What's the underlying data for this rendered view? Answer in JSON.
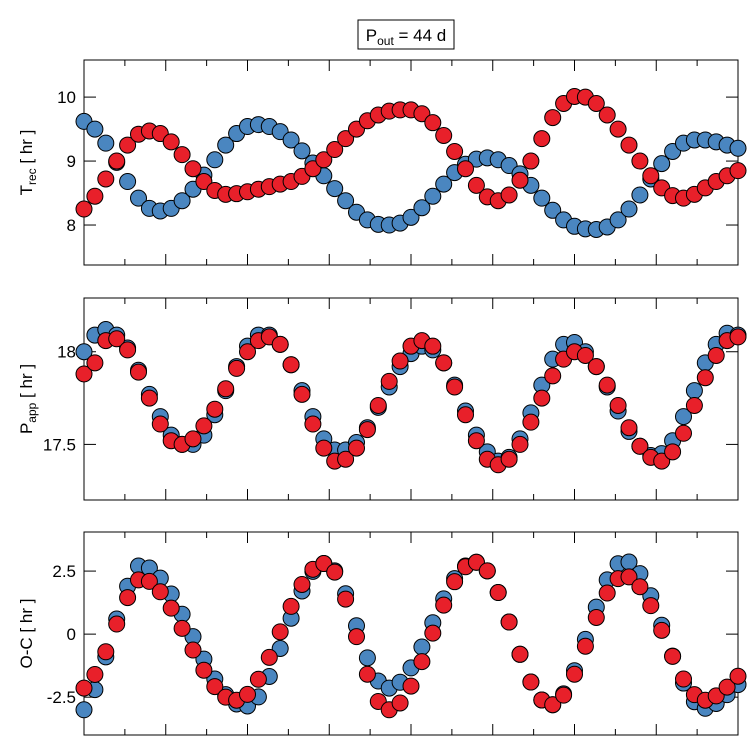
{
  "title": {
    "text": "P",
    "sub": "out",
    "suffix": " = 44 d"
  },
  "chart_data": [
    {
      "type": "line",
      "ylabel": {
        "text": "T",
        "sub": "rec",
        "suffix": " [ hr ]"
      },
      "ylim": [
        7.375,
        10.58
      ],
      "yticks": [
        8,
        9,
        10
      ],
      "series": [
        {
          "color": "#4a86c0",
          "values": [
            9.62,
            9.5,
            9.28,
            8.98,
            8.68,
            8.42,
            8.26,
            8.22,
            8.26,
            8.38,
            8.56,
            8.78,
            9.02,
            9.25,
            9.43,
            9.54,
            9.57,
            9.54,
            9.46,
            9.33,
            9.16,
            8.97,
            8.77,
            8.57,
            8.38,
            8.2,
            8.08,
            8.01,
            8.0,
            8.03,
            8.12,
            8.27,
            8.45,
            8.64,
            8.82,
            8.95,
            9.03,
            9.05,
            9.02,
            8.93,
            8.8,
            8.62,
            8.42,
            8.23,
            8.08,
            7.98,
            7.94,
            7.93,
            7.97,
            8.08,
            8.25,
            8.47,
            8.72,
            8.96,
            9.15,
            9.28,
            9.33,
            9.33,
            9.3,
            9.25,
            9.2
          ]
        },
        {
          "color": "#e8202a",
          "values": [
            8.25,
            8.45,
            8.72,
            9.0,
            9.25,
            9.42,
            9.47,
            9.43,
            9.3,
            9.1,
            8.88,
            8.68,
            8.54,
            8.48,
            8.49,
            8.52,
            8.56,
            8.6,
            8.64,
            8.68,
            8.76,
            8.88,
            9.02,
            9.18,
            9.35,
            9.5,
            9.63,
            9.72,
            9.78,
            9.8,
            9.8,
            9.74,
            9.6,
            9.4,
            9.15,
            8.88,
            8.62,
            8.44,
            8.38,
            8.47,
            8.7,
            9.0,
            9.35,
            9.68,
            9.9,
            10.01,
            10.0,
            9.9,
            9.72,
            9.5,
            9.25,
            9.0,
            8.77,
            8.58,
            8.46,
            8.42,
            8.48,
            8.58,
            8.68,
            8.77,
            8.85
          ]
        }
      ]
    },
    {
      "type": "line",
      "ylabel": {
        "text": "P",
        "sub": "app",
        "suffix": " [ hr ]"
      },
      "ylim": [
        17.2,
        18.29
      ],
      "yticks": [
        17.5,
        18
      ],
      "series": [
        {
          "color": "#4a86c0",
          "values": [
            18.0,
            18.09,
            18.12,
            18.09,
            18.02,
            17.9,
            17.77,
            17.65,
            17.55,
            17.5,
            17.5,
            17.55,
            17.66,
            17.79,
            17.92,
            18.03,
            18.09,
            18.09,
            18.04,
            17.93,
            17.79,
            17.65,
            17.53,
            17.47,
            17.47,
            17.51,
            17.59,
            17.7,
            17.81,
            17.92,
            17.99,
            18.03,
            18.01,
            17.94,
            17.82,
            17.68,
            17.55,
            17.46,
            17.41,
            17.43,
            17.53,
            17.67,
            17.82,
            17.96,
            18.04,
            18.05,
            18.0,
            17.92,
            17.81,
            17.68,
            17.57,
            17.49,
            17.44,
            17.45,
            17.52,
            17.65,
            17.79,
            17.94,
            18.04,
            18.1,
            18.09
          ]
        },
        {
          "color": "#e8202a",
          "values": [
            17.88,
            17.94,
            18.06,
            18.07,
            18.01,
            17.89,
            17.75,
            17.61,
            17.52,
            17.5,
            17.53,
            17.6,
            17.69,
            17.8,
            17.91,
            18.0,
            18.06,
            18.08,
            18.04,
            17.93,
            17.77,
            17.61,
            17.48,
            17.41,
            17.42,
            17.48,
            17.58,
            17.71,
            17.84,
            17.95,
            18.03,
            18.06,
            18.03,
            17.94,
            17.81,
            17.66,
            17.52,
            17.42,
            17.39,
            17.42,
            17.5,
            17.62,
            17.75,
            17.87,
            17.96,
            18.0,
            17.98,
            17.92,
            17.82,
            17.71,
            17.59,
            17.49,
            17.43,
            17.41,
            17.46,
            17.56,
            17.71,
            17.86,
            17.98,
            18.06,
            18.08
          ]
        }
      ]
    },
    {
      "type": "line",
      "ylabel": {
        "text": "O-C [ hr ]"
      },
      "ylim": [
        -4.0,
        4.05
      ],
      "yticks": [
        -2.5,
        0,
        2.5
      ],
      "series": [
        {
          "color": "#4a86c0",
          "values": [
            -3.0,
            -2.2,
            -0.9,
            0.6,
            1.9,
            2.7,
            2.62,
            2.22,
            1.59,
            0.79,
            -0.1,
            -0.99,
            -1.78,
            -2.4,
            -2.77,
            -2.85,
            -2.49,
            -1.68,
            -0.57,
            0.63,
            1.71,
            2.49,
            2.8,
            2.51,
            1.6,
            0.33,
            -0.94,
            -1.86,
            -2.14,
            -1.91,
            -1.34,
            -0.51,
            0.45,
            1.4,
            2.2,
            2.7,
            2.85,
            2.51,
            1.65,
            0.48,
            -0.8,
            -1.9,
            -2.61,
            -2.8,
            -2.37,
            -1.45,
            -0.21,
            1.07,
            2.15,
            2.79,
            2.86,
            2.4,
            1.52,
            0.35,
            -0.87,
            -1.94,
            -2.68,
            -2.94,
            -2.75,
            -2.4,
            -2.0
          ]
        },
        {
          "color": "#e8202a",
          "values": [
            -2.14,
            -1.6,
            -0.7,
            0.4,
            1.45,
            2.15,
            2.09,
            1.68,
            1.03,
            0.23,
            -0.63,
            -1.43,
            -2.08,
            -2.5,
            -2.62,
            -2.39,
            -1.79,
            -0.92,
            0.09,
            1.1,
            1.97,
            2.57,
            2.8,
            2.46,
            1.39,
            -0.1,
            -1.59,
            -2.67,
            -3.0,
            -2.73,
            -2.06,
            -1.09,
            0.04,
            1.15,
            2.08,
            2.67,
            2.85,
            2.51,
            1.65,
            0.48,
            -0.8,
            -1.9,
            -2.61,
            -2.8,
            -2.42,
            -1.59,
            -0.48,
            0.66,
            1.63,
            2.2,
            2.27,
            1.88,
            1.13,
            0.15,
            -0.88,
            -1.78,
            -2.4,
            -2.62,
            -2.45,
            -2.1,
            -1.67
          ]
        }
      ]
    }
  ]
}
